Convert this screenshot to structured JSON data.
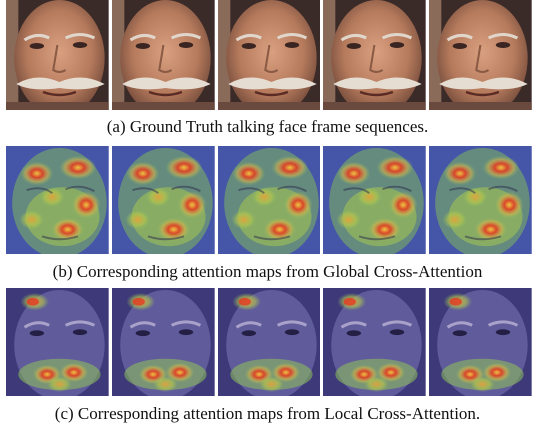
{
  "figure": {
    "panels": [
      {
        "caption": "(a) Ground Truth talking face frame sequences.",
        "kind": "photo",
        "frame_count": 5
      },
      {
        "caption": "(b) Corresponding attention maps from Global Cross-Attention",
        "kind": "global-attention",
        "frame_count": 5
      },
      {
        "caption": "(c) Corresponding attention maps from Local Cross-Attention.",
        "kind": "local-attention",
        "frame_count": 5
      }
    ],
    "colors": {
      "skin": "#c48a6a",
      "background_dark": "#3a2a28",
      "attention_low": "#3b3f9e",
      "attention_mid": "#8fc25a",
      "attention_high": "#e23b22",
      "attention_peak": "#f5c840"
    }
  }
}
